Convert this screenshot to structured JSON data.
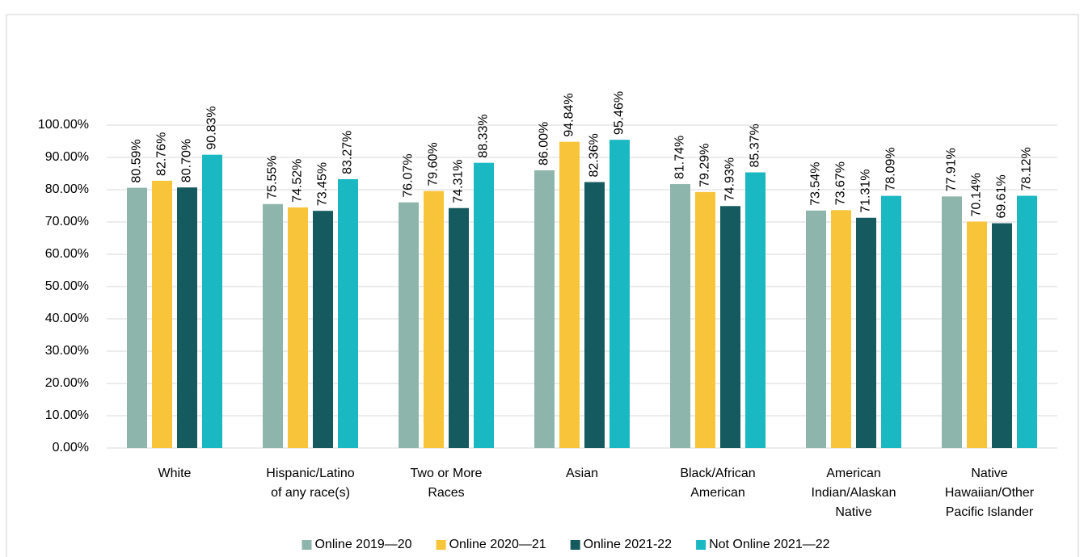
{
  "chart_data": {
    "type": "bar",
    "categories": [
      "White",
      "Hispanic/Latino\nof any race(s)",
      "Two or More\nRaces",
      "Asian",
      "Black/African\nAmerican",
      "American\nIndian/Alaskan\nNative",
      "Native\nHawaiian/Other\nPacific Islander"
    ],
    "series": [
      {
        "name": "Online 2019—20",
        "color": "#8db5ab",
        "values": [
          80.59,
          75.55,
          76.07,
          86.0,
          81.74,
          73.54,
          77.91
        ],
        "value_labels": [
          "80.59%",
          "75.55%",
          "76.07%",
          "86.00%",
          "81.74%",
          "73.54%",
          "77.91%"
        ]
      },
      {
        "name": "Online 2020—21",
        "color": "#f8c43a",
        "values": [
          82.76,
          74.52,
          79.6,
          94.84,
          79.29,
          73.67,
          70.14
        ],
        "value_labels": [
          "82.76%",
          "74.52%",
          "79.60%",
          "94.84%",
          "79.29%",
          "73.67%",
          "70.14%"
        ]
      },
      {
        "name": "Online 2021-22",
        "color": "#145a5e",
        "values": [
          80.7,
          73.45,
          74.31,
          82.36,
          74.93,
          71.31,
          69.61
        ],
        "value_labels": [
          "80.70%",
          "73.45%",
          "74.31%",
          "82.36%",
          "74.93%",
          "71.31%",
          "69.61%"
        ]
      },
      {
        "name": "Not Online 2021—22",
        "color": "#19b8c3",
        "values": [
          90.83,
          83.27,
          88.33,
          95.46,
          85.37,
          78.09,
          78.12
        ],
        "value_labels": [
          "90.83%",
          "83.27%",
          "88.33%",
          "95.46%",
          "85.37%",
          "78.09%",
          "78.12%"
        ]
      }
    ],
    "ylim": [
      0,
      100
    ],
    "yticks": [
      {
        "value": 0,
        "label": "0.00%"
      },
      {
        "value": 10,
        "label": "10.00%"
      },
      {
        "value": 20,
        "label": "20.00%"
      },
      {
        "value": 30,
        "label": "30.00%"
      },
      {
        "value": 40,
        "label": "40.00%"
      },
      {
        "value": 50,
        "label": "50.00%"
      },
      {
        "value": 60,
        "label": "60.00%"
      },
      {
        "value": 70,
        "label": "70.00%"
      },
      {
        "value": 80,
        "label": "80.00%"
      },
      {
        "value": 90,
        "label": "90.00%"
      },
      {
        "value": 100,
        "label": "100.00%"
      }
    ],
    "grid": true,
    "legend": "bottom"
  }
}
